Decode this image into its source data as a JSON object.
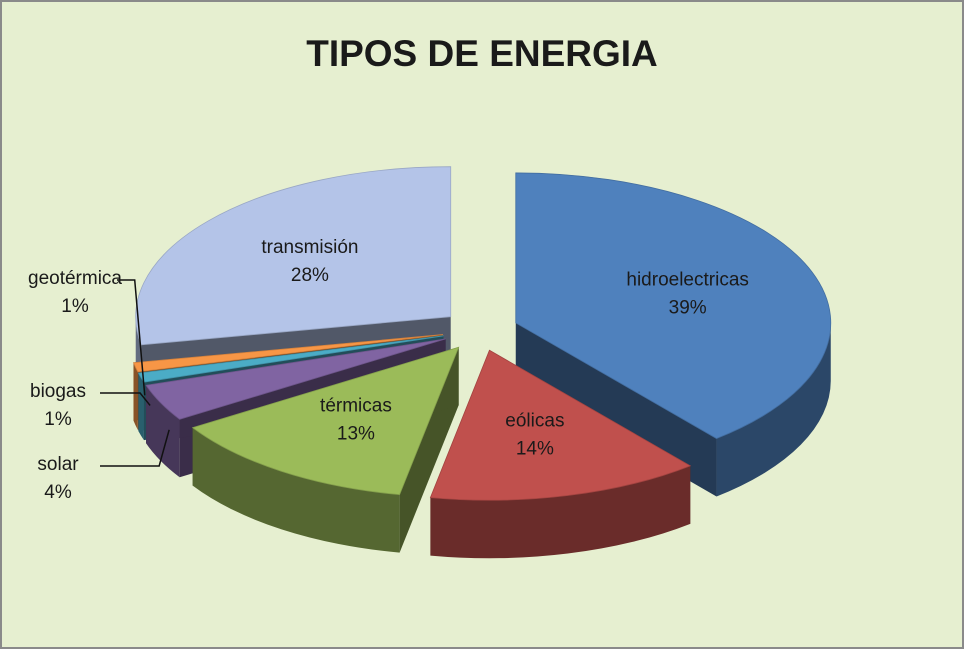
{
  "chart_data": {
    "type": "pie",
    "title": "TIPOS DE ENERGIA",
    "categories": [
      "hidroelectricas",
      "eólicas",
      "térmicas",
      "solar",
      "biogas",
      "geotérmica",
      "transmisión"
    ],
    "values": [
      39,
      14,
      13,
      4,
      1,
      1,
      28
    ],
    "value_labels": [
      "39%",
      "14%",
      "13%",
      "4%",
      "1%",
      "1%",
      "28%"
    ],
    "colors": [
      "#4f81bd",
      "#c0504d",
      "#9bbb59",
      "#8064a2",
      "#4bacc6",
      "#f79646",
      "#b4c4e8"
    ]
  }
}
